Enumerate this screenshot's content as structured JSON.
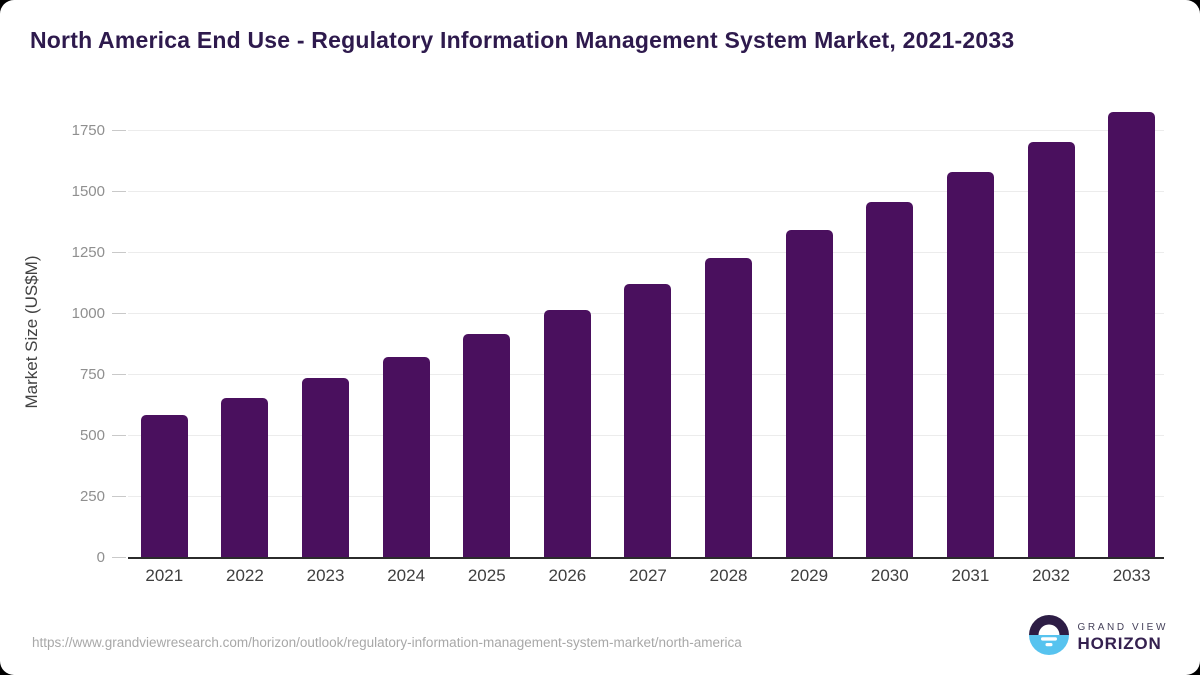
{
  "header": {
    "title": "North America End Use - Regulatory Information Management System Market, 2021-2033"
  },
  "chart_data": {
    "type": "bar",
    "title": "North America End Use - Regulatory Information Management System Market, 2021-2033",
    "categories": [
      "2021",
      "2022",
      "2023",
      "2024",
      "2025",
      "2026",
      "2027",
      "2028",
      "2029",
      "2030",
      "2031",
      "2032",
      "2033"
    ],
    "values": [
      587,
      655,
      736,
      822,
      917,
      1017,
      1121,
      1230,
      1346,
      1461,
      1581,
      1705,
      1828
    ],
    "xlabel": "",
    "ylabel": "Market Size (US$M)",
    "ylim": [
      0,
      1750
    ],
    "yticks": [
      0,
      250,
      500,
      750,
      1000,
      1250,
      1500,
      1750
    ],
    "grid": "horizontal",
    "legend": "none",
    "bar_color": "#4a105e"
  },
  "footer": {
    "source_url": "https://www.grandviewresearch.com/horizon/outlook/regulatory-information-management-system-market/north-america",
    "logo": {
      "line1": "GRAND VIEW",
      "line2": "HORIZON",
      "icon": "horizon-sunrise-icon",
      "icon_top_color": "#2d1d45",
      "icon_bottom_color": "#57c3ef"
    }
  },
  "colors": {
    "title_text": "#2e1a4d",
    "bar": "#4a105e",
    "axis_line": "#2b2b2b",
    "gridline": "#ececec",
    "y_tick_text": "#8f8f8f",
    "x_tick_text": "#3f3f3f",
    "url_text": "#a8a8a8"
  }
}
